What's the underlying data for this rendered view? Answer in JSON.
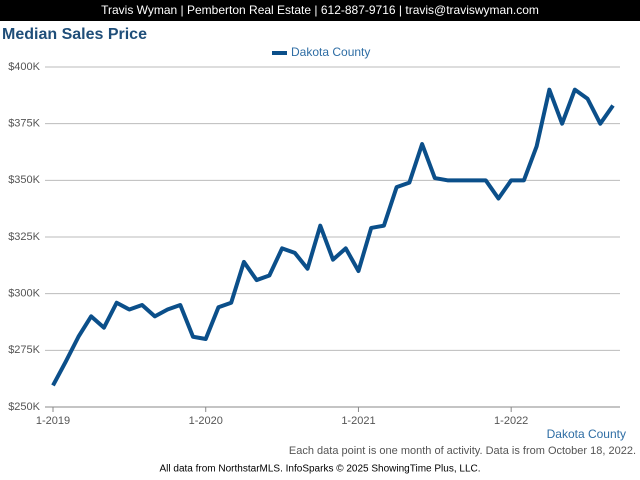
{
  "header": "Travis Wyman | Pemberton Real Estate | 612-887-9716 | travis@traviswyman.com",
  "chart_data": {
    "type": "line",
    "title": "Median Sales Price",
    "categories": [
      "1-2019",
      null,
      null,
      null,
      null,
      null,
      null,
      null,
      null,
      null,
      null,
      null,
      "1-2020",
      null,
      null,
      null,
      null,
      null,
      null,
      null,
      null,
      null,
      null,
      null,
      "1-2021",
      null,
      null,
      null,
      null,
      null,
      null,
      null,
      null,
      null,
      null,
      null,
      "1-2022",
      null,
      null,
      null,
      null,
      null,
      null,
      null,
      null
    ],
    "series": [
      {
        "name": "Dakota County",
        "color": "#0b4f8a",
        "values": [
          259500,
          270000,
          281000,
          290000,
          285000,
          296000,
          293000,
          295000,
          290000,
          293000,
          295000,
          281000,
          280000,
          294000,
          296000,
          314000,
          306000,
          308000,
          320000,
          318000,
          311000,
          330000,
          315000,
          320000,
          310000,
          329000,
          330000,
          347000,
          349000,
          366000,
          351000,
          350000,
          350000,
          350000,
          350000,
          342000,
          350000,
          350000,
          365000,
          390000,
          375000,
          390000,
          386000,
          375000,
          383000
        ]
      }
    ],
    "ylim": [
      250000,
      400000
    ],
    "yticks": [
      {
        "value": 250000,
        "label": "$250K"
      },
      {
        "value": 275000,
        "label": "$275K"
      },
      {
        "value": 300000,
        "label": "$300K"
      },
      {
        "value": 325000,
        "label": "$325K"
      },
      {
        "value": 350000,
        "label": "$350K"
      },
      {
        "value": 375000,
        "label": "$375K"
      },
      {
        "value": 400000,
        "label": "$400K"
      }
    ],
    "grid": true,
    "legend": "top",
    "region_label": "Dakota County",
    "note": "Each data point is one month of activity. Data is from October 18, 2022.",
    "source": "All data from NorthstarMLS. InfoSparks © 2025 ShowingTime Plus, LLC."
  }
}
